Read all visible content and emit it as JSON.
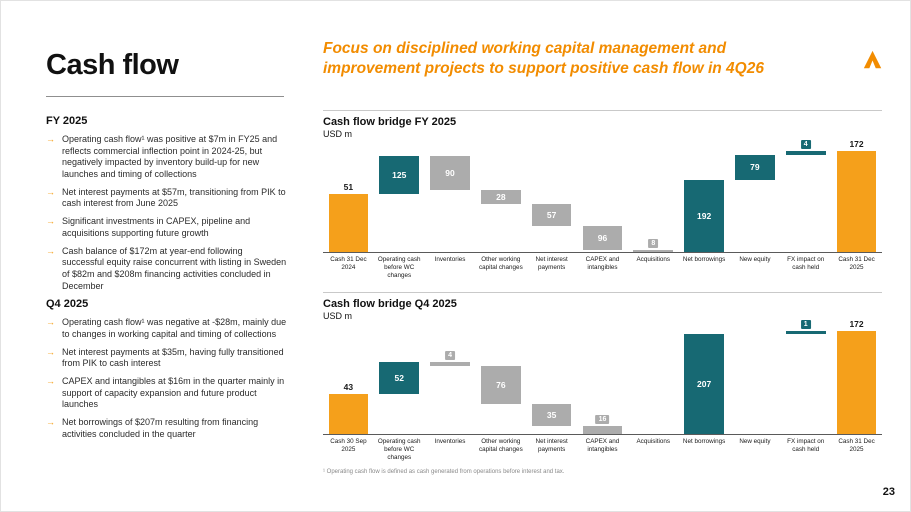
{
  "colors": {
    "orange": "#F5A01B",
    "headline_orange": "#F28C00",
    "teal": "#176973",
    "gray": "#ACACAC",
    "axis": "#5a5a5a"
  },
  "header": {
    "headline": "Focus on disciplined working capital management and improvement projects to support positive cash flow in 4Q26"
  },
  "left": {
    "title": "Cash flow",
    "sections": [
      {
        "heading": "FY 2025",
        "bullets": [
          "Operating cash flow¹ was positive at $7m in FY25 and reflects commercial inflection point in 2024-25, but negatively impacted by inventory build-up for new launches and timing of collections",
          "Net interest payments at $57m, transitioning from PIK to cash interest from June 2025",
          "Significant investments in CAPEX, pipeline and acquisitions supporting future growth",
          "Cash balance of $172m at year-end following successful equity raise concurrent with listing in Sweden of $82m and $208m financing activities concluded in December"
        ]
      },
      {
        "heading": "Q4 2025",
        "bullets": [
          "Operating cash flow¹ was negative at -$28m, mainly due to changes in working capital and timing of collections",
          "Net interest payments at $35m, having fully transitioned from PIK to cash interest",
          "CAPEX and intangibles at $16m in the quarter mainly in support of capacity expansion and future product launches",
          "Net borrowings of $207m resulting from financing activities concluded in the quarter"
        ]
      }
    ]
  },
  "chart_data": [
    {
      "type": "bar",
      "subtype": "waterfall",
      "title": "Cash flow bridge FY 2025",
      "unit": "USD m",
      "y_axis": "hidden",
      "steps": [
        {
          "label": "Cash 31 Dec 2024",
          "amount": 51,
          "direction": "total",
          "display": [
            0,
            58
          ],
          "label_pos": "above"
        },
        {
          "label": "Operating cash before WC changes",
          "amount": 125,
          "direction": "up",
          "display": [
            58,
            96
          ],
          "label_pos": "inside"
        },
        {
          "label": "Inventories",
          "amount": 90,
          "direction": "down",
          "display": [
            62,
            96
          ],
          "label_pos": "inside"
        },
        {
          "label": "Other working capital changes",
          "amount": 28,
          "direction": "down",
          "display": [
            48,
            62
          ],
          "label_pos": "inside"
        },
        {
          "label": "Net interest payments",
          "amount": 57,
          "direction": "down",
          "display": [
            26,
            48
          ],
          "label_pos": "inside"
        },
        {
          "label": "CAPEX and intangibles",
          "amount": 96,
          "direction": "down",
          "display": [
            2,
            26
          ],
          "label_pos": "inside"
        },
        {
          "label": "Acquisitions",
          "amount": 8,
          "direction": "down",
          "display": [
            0,
            2
          ],
          "label_pos": "boxed"
        },
        {
          "label": "Net borrowings",
          "amount": 192,
          "direction": "up",
          "display": [
            0,
            72
          ],
          "label_pos": "inside"
        },
        {
          "label": "New equity",
          "amount": 79,
          "direction": "up",
          "display": [
            72,
            97
          ],
          "label_pos": "inside"
        },
        {
          "label": "FX impact on cash held",
          "amount": 4,
          "direction": "up",
          "display": [
            97,
            101
          ],
          "label_pos": "boxed"
        },
        {
          "label": "Cash 31 Dec 2025",
          "amount": 172,
          "direction": "total",
          "display": [
            0,
            101
          ],
          "label_pos": "above"
        }
      ]
    },
    {
      "type": "bar",
      "subtype": "waterfall",
      "title": "Cash flow bridge Q4 2025",
      "unit": "USD m",
      "y_axis": "hidden",
      "steps": [
        {
          "label": "Cash 30 Sep 2025",
          "amount": 43,
          "direction": "total",
          "display": [
            0,
            40
          ],
          "label_pos": "above"
        },
        {
          "label": "Operating cash before WC changes",
          "amount": 52,
          "direction": "up",
          "display": [
            40,
            72
          ],
          "label_pos": "inside"
        },
        {
          "label": "Inventories",
          "amount": 4,
          "direction": "down",
          "display": [
            68,
            72
          ],
          "label_pos": "boxed"
        },
        {
          "label": "Other working capital changes",
          "amount": 76,
          "direction": "down",
          "display": [
            30,
            68
          ],
          "label_pos": "inside"
        },
        {
          "label": "Net interest payments",
          "amount": 35,
          "direction": "down",
          "display": [
            8,
            30
          ],
          "label_pos": "inside"
        },
        {
          "label": "CAPEX and intangibles",
          "amount": 16,
          "direction": "down",
          "display": [
            0,
            8
          ],
          "label_pos": "boxed"
        },
        {
          "label": "Acquisitions",
          "amount": null,
          "direction": "none"
        },
        {
          "label": "Net borrowings",
          "amount": 207,
          "direction": "up",
          "display": [
            0,
            100
          ],
          "label_pos": "inside"
        },
        {
          "label": "New equity",
          "amount": null,
          "direction": "none"
        },
        {
          "label": "FX impact on cash held",
          "amount": 1,
          "direction": "up",
          "display": [
            100,
            103
          ],
          "label_pos": "boxed"
        },
        {
          "label": "Cash 31 Dec 2025",
          "amount": 172,
          "direction": "total",
          "display": [
            0,
            103
          ],
          "label_pos": "above"
        }
      ]
    }
  ],
  "footer": {
    "footnote": "¹ Operating cash flow is defined as cash generated from operations before interest and tax.",
    "page_number": "23"
  }
}
